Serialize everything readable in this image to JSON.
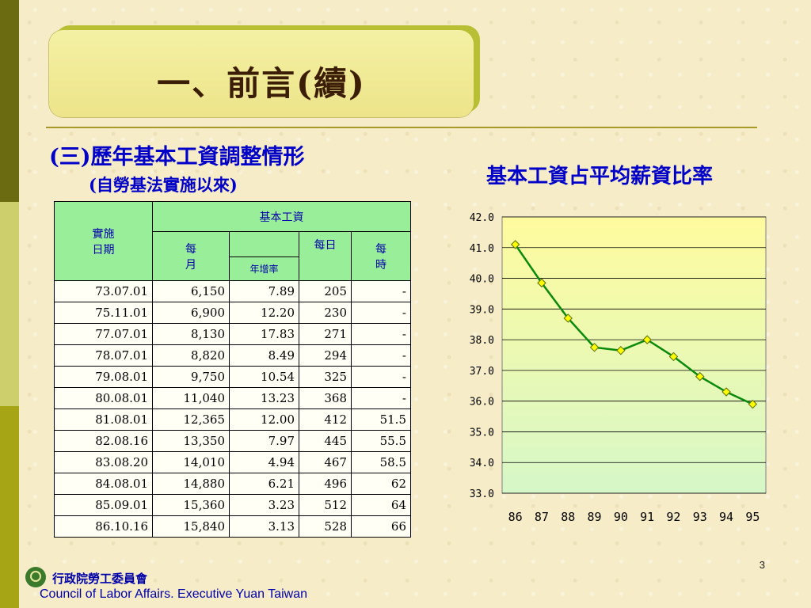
{
  "slide": {
    "title": "一、前言(續)",
    "subtitle": "(三)歷年基本工資調整情形",
    "subtitle2": "(自勞基法實施以來)",
    "page_number": "3"
  },
  "footer": {
    "org_cn": "行政院勞工委員會",
    "org_en": "Council of Labor Affairs. Executive Yuan Taiwan"
  },
  "table": {
    "header_date": "實施\n日期",
    "header_group": "基本工資",
    "header_monthly": "每\n月",
    "header_growth": "年增率",
    "header_daily": "每日",
    "header_hourly": "每\n時",
    "rows": [
      [
        "73.07.01",
        "6,150",
        "7.89",
        "205",
        "-"
      ],
      [
        "75.11.01",
        "6,900",
        "12.20",
        "230",
        "-"
      ],
      [
        "77.07.01",
        "8,130",
        "17.83",
        "271",
        "-"
      ],
      [
        "78.07.01",
        "8,820",
        "8.49",
        "294",
        "-"
      ],
      [
        "79.08.01",
        "9,750",
        "10.54",
        "325",
        "-"
      ],
      [
        "80.08.01",
        "11,040",
        "13.23",
        "368",
        "-"
      ],
      [
        "81.08.01",
        "12,365",
        "12.00",
        "412",
        "51.5"
      ],
      [
        "82.08.16",
        "13,350",
        "7.97",
        "445",
        "55.5"
      ],
      [
        "83.08.20",
        "14,010",
        "4.94",
        "467",
        "58.5"
      ],
      [
        "84.08.01",
        "14,880",
        "6.21",
        "496",
        "62"
      ],
      [
        "85.09.01",
        "15,360",
        "3.23",
        "512",
        "64"
      ],
      [
        "86.10.16",
        "15,840",
        "3.13",
        "528",
        "66"
      ]
    ]
  },
  "chart_data": {
    "type": "line",
    "title": "基本工資占平均薪資比率",
    "categories": [
      "86",
      "87",
      "88",
      "89",
      "90",
      "91",
      "92",
      "93",
      "94",
      "95"
    ],
    "values": [
      41.1,
      39.85,
      38.7,
      37.75,
      37.65,
      38.0,
      37.45,
      36.8,
      36.3,
      35.9
    ],
    "ylim": [
      33.0,
      42.0
    ],
    "yticks": [
      "42.0",
      "41.0",
      "40.0",
      "39.0",
      "38.0",
      "37.0",
      "36.0",
      "35.0",
      "34.0",
      "33.0"
    ],
    "grid": true,
    "line_color": "#0a8a0a",
    "marker_color": "#ffff00"
  }
}
